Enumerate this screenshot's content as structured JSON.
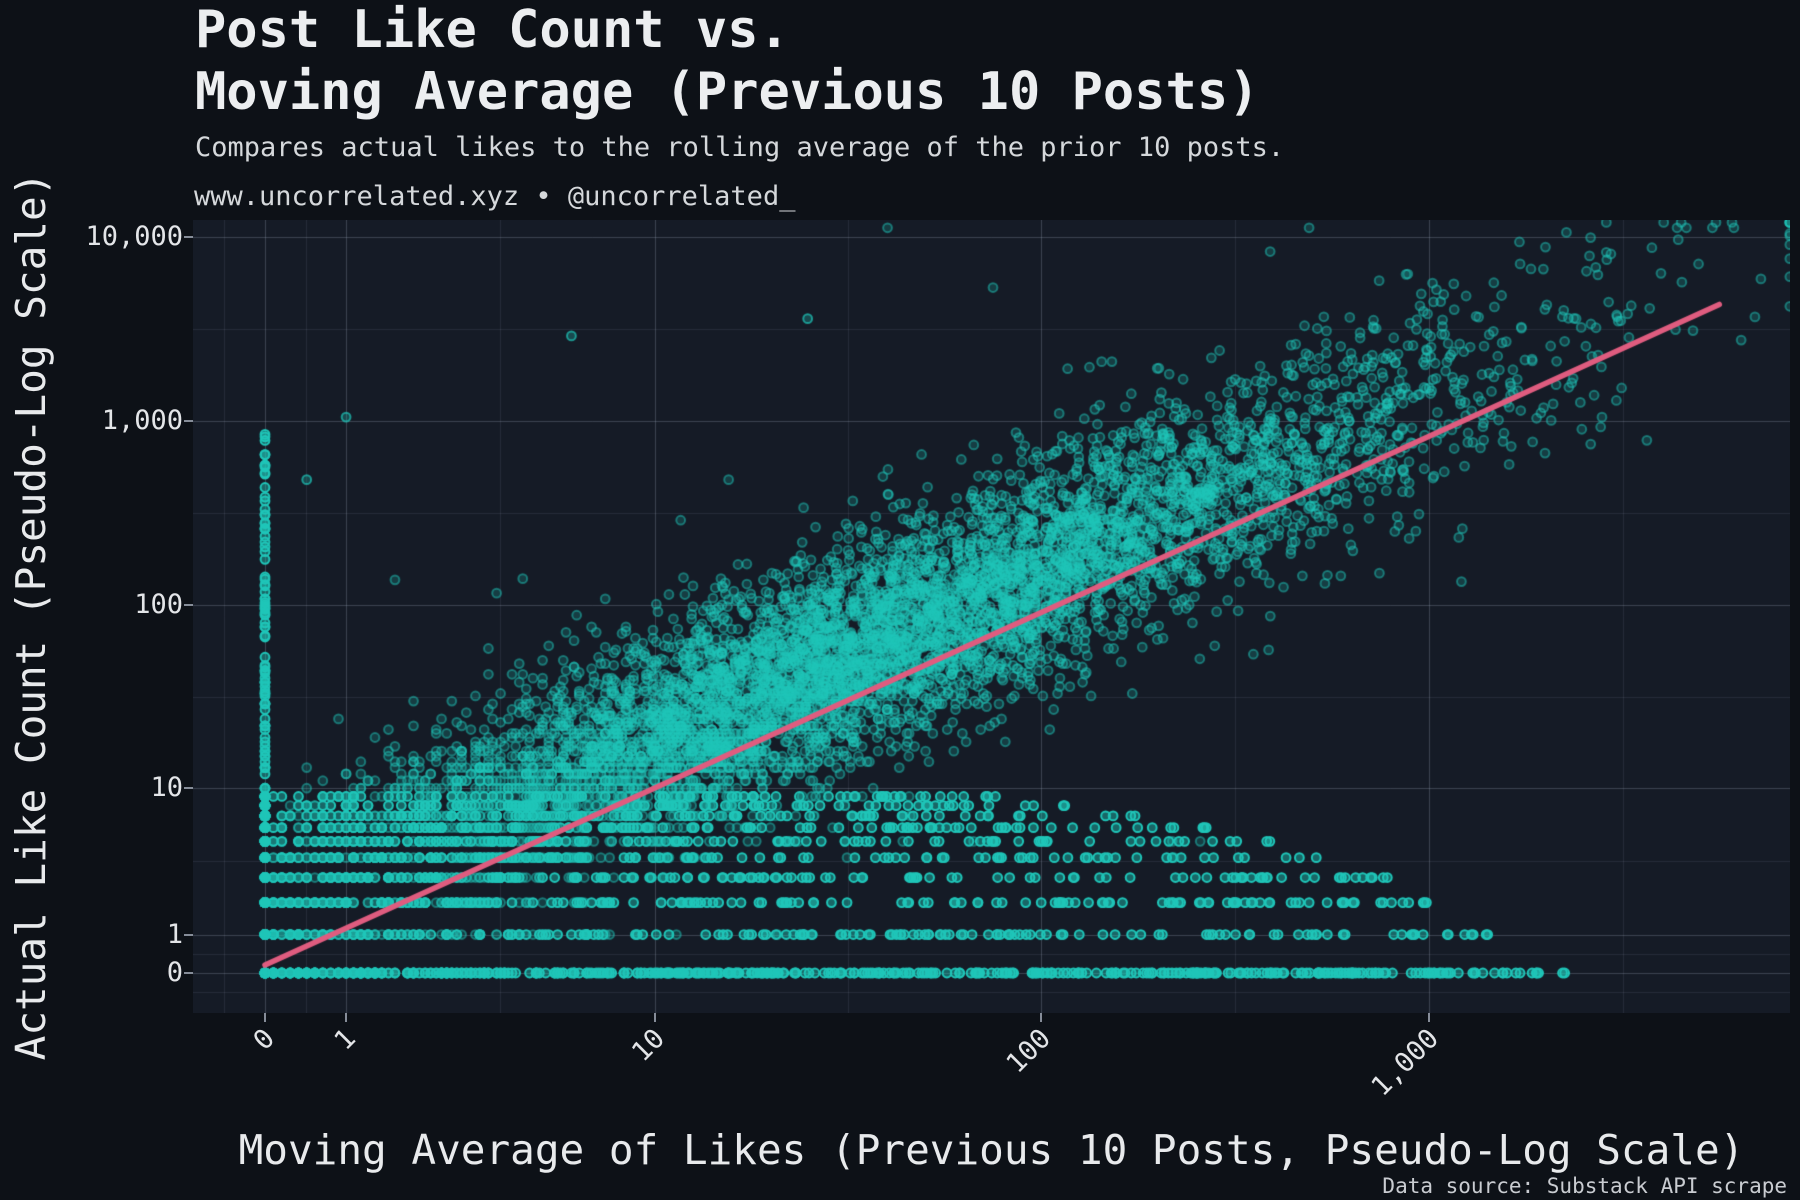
{
  "header": {
    "title_line1": "Post Like Count vs.",
    "title_line2": "Moving Average (Previous 10 Posts)",
    "subtitle": "Compares actual likes to the rolling average of the prior 10 posts.",
    "watermark": "www.uncorrelated.xyz • @uncorrelated_"
  },
  "footer": {
    "source_note": "Data source: Substack API scrape"
  },
  "colors": {
    "page_bg": "#0d1117",
    "panel_bg": "#151b26",
    "grid_major": "rgba(152,164,182,0.30)",
    "grid_minor": "rgba(152,164,182,0.13)",
    "point_teal": "31,198,185",
    "trend_pink": "#df5c7f",
    "text_bright": "#eceef0",
    "text_dim": "#d5d8db"
  },
  "chart_data": {
    "type": "scatter",
    "title": "Post Like Count vs. Moving Average (Previous 10 Posts)",
    "subtitle": "Compares actual likes to the rolling average of the prior 10 posts.",
    "xlabel": "Moving Average of Likes (Previous 10 Posts, Pseudo-Log Scale)",
    "ylabel": "Actual Like Count (Pseudo-Log Scale)",
    "scale": "pseudo-log: t(v)=asinh(v/2)/ln(10), both axes",
    "legend": "none",
    "grid": {
      "major": true,
      "minor": "midpoints-of-majors"
    },
    "x_ticks": [
      {
        "value": 0,
        "label": "0"
      },
      {
        "value": 1,
        "label": "1"
      },
      {
        "value": 10,
        "label": "10"
      },
      {
        "value": 100,
        "label": "100"
      },
      {
        "value": 1000,
        "label": "1,000"
      }
    ],
    "y_ticks": [
      {
        "value": 0,
        "label": "0"
      },
      {
        "value": 1,
        "label": "1"
      },
      {
        "value": 10,
        "label": "10"
      },
      {
        "value": 100,
        "label": "100"
      },
      {
        "value": 1000,
        "label": "1,000"
      },
      {
        "value": 10000,
        "label": "10,000"
      }
    ],
    "extra_minor_t": {
      "x": [
        -0.1045,
        3.5
      ],
      "y": [
        -0.1045
      ]
    },
    "x_range_data": [
      -1,
      9000
    ],
    "y_range_data": [
      -1,
      15000
    ],
    "point_style": {
      "radius": 4.4,
      "fill_alpha": 0.2,
      "stroke_alpha": 0.5,
      "stroke_width": 2
    },
    "trendline": {
      "from": {
        "x": 0,
        "y": 0.2
      },
      "to": {
        "x": 5600,
        "y": 4300
      },
      "width": 5.5
    },
    "points": {
      "description": "~9000 Substack posts: actual like count vs rolling mean of prior 10 posts. Strong diagonal correlation cloud around y≈x, integer-banding at low like counts (rows y=0..10), dense vertical column at moving-average=0, sparse outliers up to ~12k likes.",
      "n_total": 9030,
      "seed": 77,
      "components": [
        {
          "name": "main_cloud",
          "n": 7000,
          "tx_mean": 1.45,
          "tx_sd": 0.8,
          "tx_min": -0.28,
          "tx_max": 3.93,
          "slope": 0.93,
          "offset": 0.33,
          "noise_sd": 0.3,
          "alpha_boost": 1.0
        },
        {
          "name": "low_bands",
          "n": 1700,
          "y_max": 9,
          "reach_base": 3.35,
          "reach_per_y": 0.15,
          "x_pow": 1.35,
          "alpha_boost": 2.2
        },
        {
          "name": "zero_column",
          "n": 240,
          "exp_max": 6.8,
          "u_pow": 2.3,
          "alpha_boost": 2.2
        },
        {
          "name": "outliers",
          "n": 90,
          "ty_sd": 1.0,
          "alpha_boost": 1.0
        }
      ],
      "feature_points": [
        [
          6,
          2900
        ],
        [
          25,
          3600
        ],
        [
          1,
          1050
        ],
        [
          0.5,
          480
        ]
      ],
      "y_clamp_max": 12000
    }
  }
}
